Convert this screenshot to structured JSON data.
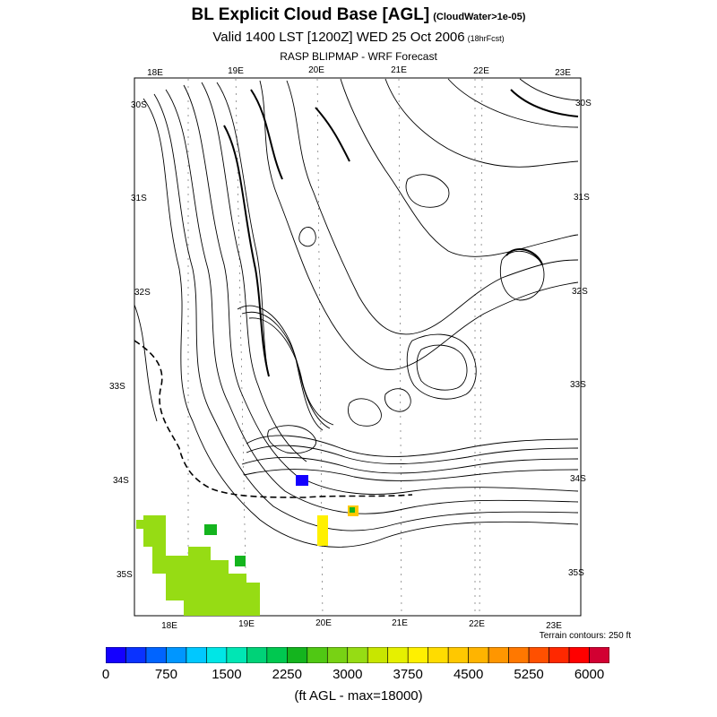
{
  "header": {
    "title": "BL Explicit Cloud Base [AGL]",
    "title_note": "(CloudWater>1e-05)",
    "subtitle": "Valid 1400 LST [1200Z] WED 25 Oct 2006",
    "subtitle_note": "(18hrFcst)",
    "source": "RASP BLIPMAP - WRF Forecast"
  },
  "map": {
    "top_lon_labels": [
      "18E",
      "19E",
      "20E",
      "21E",
      "22E",
      "23E"
    ],
    "bottom_lon_labels": [
      "18E",
      "19E",
      "20E",
      "21E",
      "22E",
      "23E"
    ],
    "left_lat_labels": [
      "30S",
      "31S",
      "32S",
      "33S",
      "34S",
      "35S"
    ],
    "right_lat_labels": [
      "30S",
      "31S",
      "32S",
      "33S",
      "34S",
      "35S"
    ],
    "terrain_note": "Terrain contours: 250 ft"
  },
  "colorbar": {
    "labels": [
      "0",
      "750",
      "1500",
      "2250",
      "3000",
      "3750",
      "4500",
      "5250",
      "6000"
    ],
    "colors": [
      "#1400ff",
      "#0a32ff",
      "#0064ff",
      "#0096ff",
      "#00c8ff",
      "#00e6e6",
      "#00e6b4",
      "#00d278",
      "#00c850",
      "#14b41e",
      "#50c814",
      "#78d214",
      "#96dc14",
      "#c8e600",
      "#e6f000",
      "#fff000",
      "#ffdc00",
      "#ffc800",
      "#ffb400",
      "#ff9600",
      "#ff7800",
      "#ff5000",
      "#ff2800",
      "#ff0000",
      "#d20032"
    ],
    "units": "(ft AGL - max=18000)"
  }
}
